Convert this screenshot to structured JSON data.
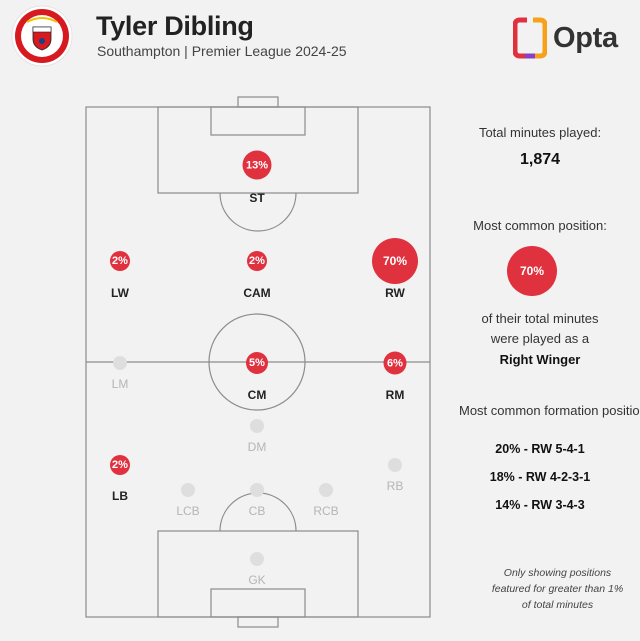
{
  "header": {
    "player_name": "Tyler Dibling",
    "subtitle": "Southampton | Premier League 2024-25"
  },
  "crest_colors": {
    "primary": "#d71920",
    "secondary": "#ffffff"
  },
  "brand": {
    "name": "Opta",
    "colors": [
      "#e0313f",
      "#f6a11a",
      "#8a3fc7"
    ]
  },
  "positions": [
    {
      "code": "ST",
      "share": "13%",
      "active": true
    },
    {
      "code": "LW",
      "share": "2%",
      "active": true
    },
    {
      "code": "CAM",
      "share": "2%",
      "active": true
    },
    {
      "code": "RW",
      "share": "70%",
      "active": true
    },
    {
      "code": "LM",
      "share": "",
      "active": false
    },
    {
      "code": "CM",
      "share": "5%",
      "active": true
    },
    {
      "code": "RM",
      "share": "6%",
      "active": true
    },
    {
      "code": "DM",
      "share": "",
      "active": false
    },
    {
      "code": "LB",
      "share": "2%",
      "active": true
    },
    {
      "code": "RB",
      "share": "",
      "active": false
    },
    {
      "code": "LCB",
      "share": "",
      "active": false
    },
    {
      "code": "CB",
      "share": "",
      "active": false
    },
    {
      "code": "RCB",
      "share": "",
      "active": false
    },
    {
      "code": "GK",
      "share": "",
      "active": false
    }
  ],
  "stats": {
    "minutes_label": "Total minutes played:",
    "minutes_value": "1,874",
    "position_label": "Most common position:",
    "position_share": "70%",
    "position_desc_1": "of their total minutes",
    "position_desc_2": "were played as a",
    "position_name": "Right Winger",
    "formation_label": "Most common formation position:",
    "formations": [
      "20% - RW 5-4-1",
      "18% - RW 4-2-3-1",
      "14% - RW 3-4-3"
    ],
    "note": "Only showing positions featured for greater than 1% of total minutes"
  },
  "accent_color": "#e0313f",
  "inactive_color": "#dedede"
}
